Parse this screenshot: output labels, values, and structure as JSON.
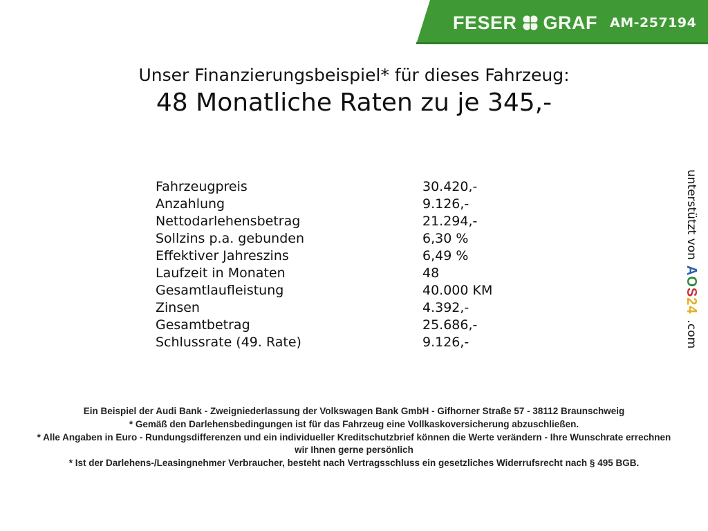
{
  "header": {
    "brand": "FESER GRAF",
    "brand_icon": "clover-icon",
    "ad_id": "AM-257194",
    "brand_color": "#3f9a36"
  },
  "title": {
    "line1": "Unser Finanzierungsbeispiel* für dieses Fahrzeug:",
    "line2": "48 Monatliche Raten zu je 345,-"
  },
  "rows": [
    {
      "label": "Fahrzeugpreis",
      "value": "30.420,-"
    },
    {
      "label": "Anzahlung",
      "value": "9.126,-"
    },
    {
      "label": "Nettodarlehensbetrag",
      "value": "21.294,-"
    },
    {
      "label": "Sollzins p.a. gebunden",
      "value": "6,30 %"
    },
    {
      "label": "Effektiver Jahreszins",
      "value": "6,49 %"
    },
    {
      "label": "Laufzeit in Monaten",
      "value": "48"
    },
    {
      "label": "Gesamtlaufleistung",
      "value": "40.000 KM"
    },
    {
      "label": "Zinsen",
      "value": "4.392,-"
    },
    {
      "label": "Gesamtbetrag",
      "value": "25.686,-"
    },
    {
      "label": "Schlussrate (49. Rate)",
      "value": "9.126,-"
    }
  ],
  "side": {
    "text": "unterstützt von",
    "logo": "AOS24",
    "domain": ".com"
  },
  "footer": [
    "Ein Beispiel der Audi Bank - Zweigniederlassung der Volkswagen Bank GmbH - Gifhorner Straße 57 - 38112 Braunschweig",
    "* Gemäß den Darlehensbedingungen ist für das Fahrzeug eine Vollkaskoversicherung abzuschließen.",
    "* Alle Angaben in Euro - Rundungsdifferenzen und ein individueller Kreditschutzbrief können die Werte verändern - Ihre Wunschrate errechnen wir Ihnen gerne persönlich",
    "* Ist der Darlehens-/Leasingnehmer Verbraucher, besteht nach Vertragsschluss ein gesetzliches Widerrufsrecht nach § 495 BGB."
  ]
}
